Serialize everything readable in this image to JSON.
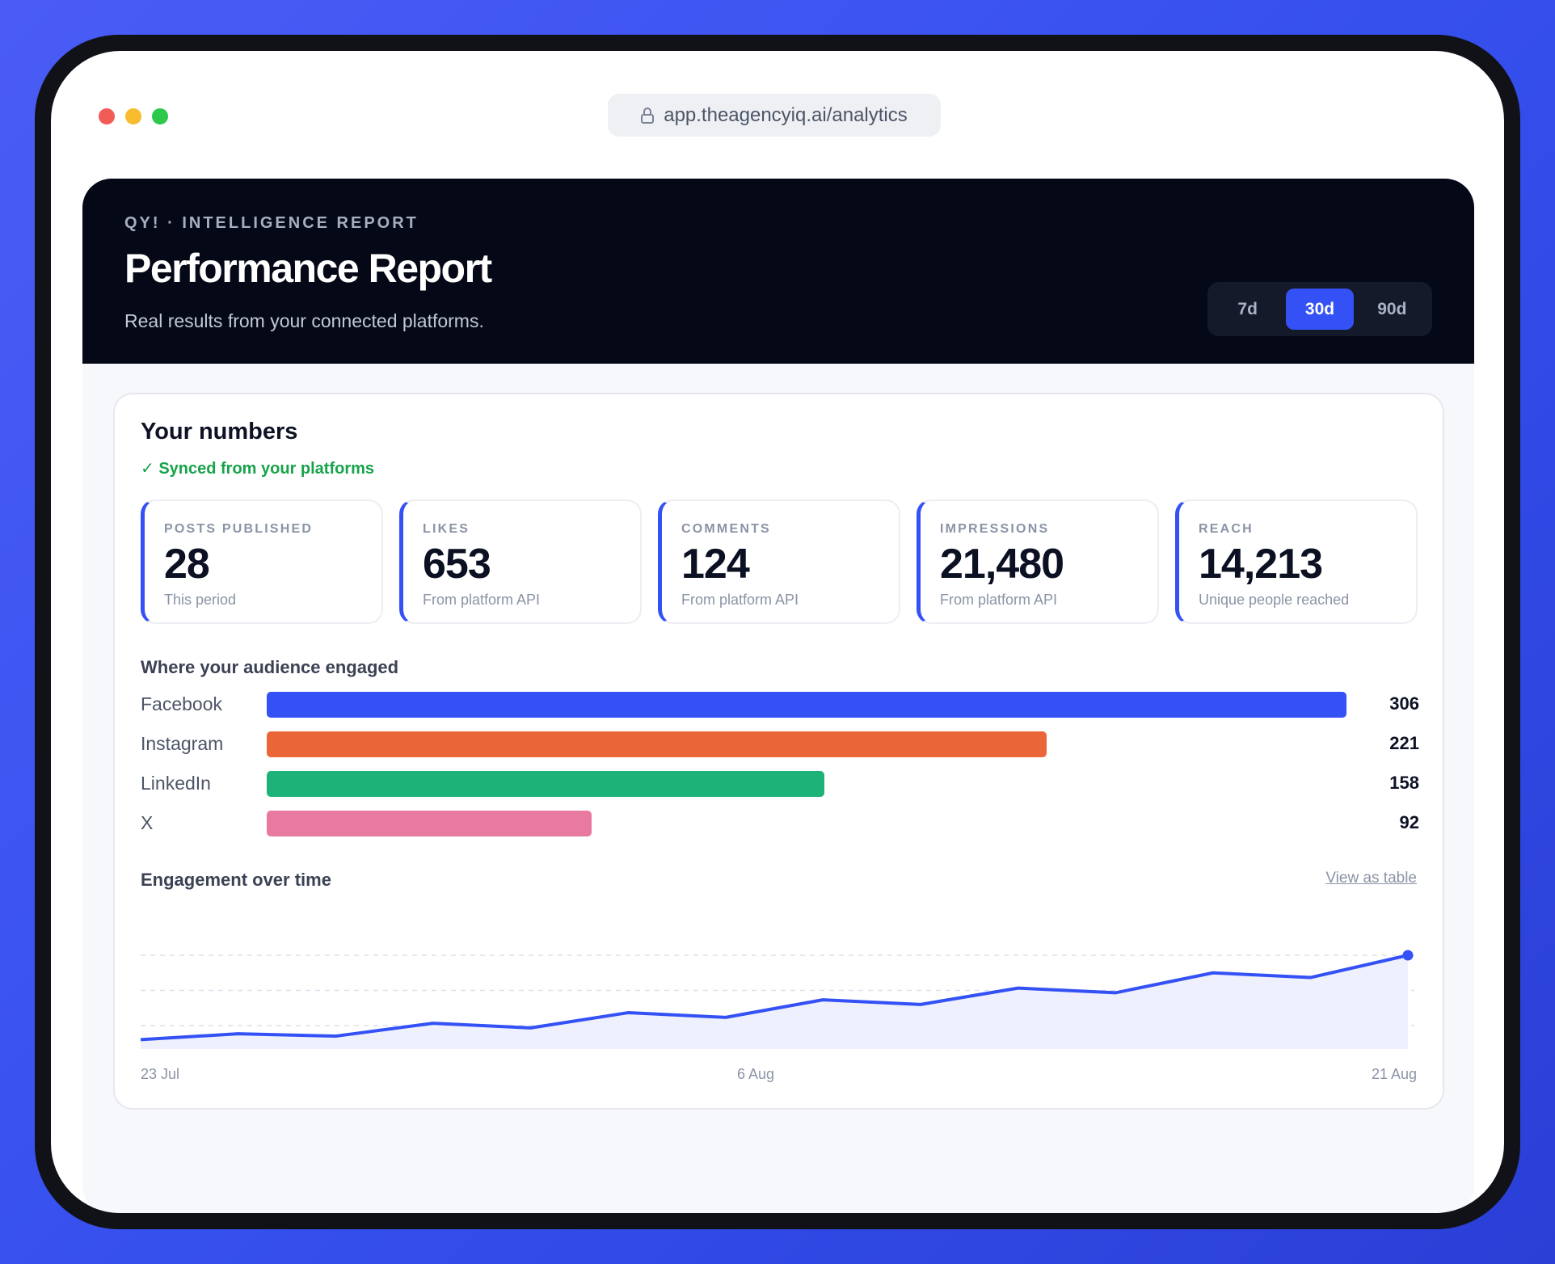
{
  "browser": {
    "url": "app.theagencyiq.ai/analytics"
  },
  "header": {
    "kicker": "QY! · INTELLIGENCE REPORT",
    "title": "Performance Report",
    "subtitle": "Real results from your connected platforms.",
    "periods": [
      "7d",
      "30d",
      "90d"
    ],
    "active_period": "30d"
  },
  "numbers": {
    "title": "Your numbers",
    "synced": "✓ Synced from your platforms",
    "stats": [
      {
        "label": "POSTS PUBLISHED",
        "value": "28",
        "sub": "This period"
      },
      {
        "label": "LIKES",
        "value": "653",
        "sub": "From platform API"
      },
      {
        "label": "COMMENTS",
        "value": "124",
        "sub": "From platform API"
      },
      {
        "label": "IMPRESSIONS",
        "value": "21,480",
        "sub": "From platform API"
      },
      {
        "label": "REACH",
        "value": "14,213",
        "sub": "Unique people reached"
      }
    ]
  },
  "audience": {
    "title": "Where your audience engaged",
    "platforms": [
      {
        "name": "Facebook",
        "value": 306,
        "color": "#3451f5"
      },
      {
        "name": "Instagram",
        "value": 221,
        "color": "#ea6638"
      },
      {
        "name": "LinkedIn",
        "value": 158,
        "color": "#1db278"
      },
      {
        "name": "X",
        "value": 92,
        "color": "#e879a0"
      }
    ]
  },
  "engagement": {
    "title": "Engagement over time",
    "view_link": "View as table",
    "x_labels": [
      "23 Jul",
      "6 Aug",
      "21 Aug"
    ]
  },
  "chart_data": {
    "type": "area",
    "x": [
      "23 Jul",
      "",
      "",
      "",
      "",
      "",
      "",
      "",
      "",
      "",
      "",
      "",
      "",
      "21 Aug"
    ],
    "series": [
      {
        "values": [
          8,
          13,
          11,
          22,
          18,
          31,
          27,
          42,
          38,
          52,
          48,
          65,
          61,
          80
        ]
      }
    ],
    "ylim": [
      0,
      100
    ],
    "grid": true,
    "color": "#3451f5",
    "fill": "#eef0fd"
  }
}
